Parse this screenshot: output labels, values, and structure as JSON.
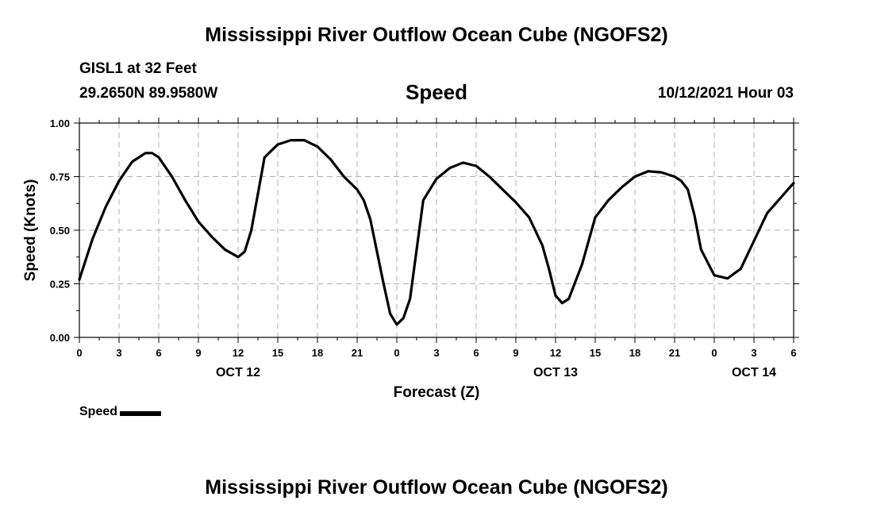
{
  "header": {
    "title": "Mississippi River Outflow Ocean Cube (NGOFS2)",
    "station": "GISL1 at 32 Feet",
    "coordinates": "29.2650N  89.9580W",
    "variable": "Speed",
    "datetime": "10/12/2021 Hour 03"
  },
  "footer": {
    "title": "Mississippi River Outflow Ocean Cube (NGOFS2)"
  },
  "legend": {
    "label": "Speed",
    "color": "#000000"
  },
  "chart_data": {
    "type": "line",
    "title": "Speed",
    "xlabel": "Forecast (Z)",
    "ylabel": "Speed (Knots)",
    "xlim": [
      0,
      54
    ],
    "ylim": [
      0,
      1
    ],
    "grid": true,
    "x_tick_values": [
      0,
      3,
      6,
      9,
      12,
      15,
      18,
      21,
      24,
      27,
      30,
      33,
      36,
      39,
      42,
      45,
      48,
      51,
      54
    ],
    "x_tick_labels": [
      "0",
      "3",
      "6",
      "9",
      "12",
      "15",
      "18",
      "21",
      "0",
      "3",
      "6",
      "9",
      "12",
      "15",
      "18",
      "21",
      "0",
      "3",
      "6"
    ],
    "date_labels": [
      {
        "x": 12,
        "label": "OCT 12"
      },
      {
        "x": 36,
        "label": "OCT 13"
      },
      {
        "x": 51,
        "label": "OCT 14"
      }
    ],
    "y_ticks": [
      0.0,
      0.25,
      0.5,
      0.75,
      1.0
    ],
    "y_tick_labels": [
      "0.00",
      "0.25",
      "0.50",
      "0.75",
      "1.00"
    ],
    "series": [
      {
        "name": "Speed",
        "color": "#000000",
        "x": [
          0,
          1,
          2,
          3,
          4,
          5,
          5.5,
          6,
          7,
          8,
          9,
          10,
          11,
          12,
          12.5,
          13,
          14,
          15,
          16,
          17,
          18,
          19,
          20,
          21,
          21.5,
          22,
          23,
          23.5,
          24,
          24.5,
          25,
          26,
          27,
          28,
          29,
          30,
          31,
          32,
          33,
          34,
          35,
          35.5,
          36,
          36.5,
          37,
          38,
          39,
          40,
          41,
          42,
          43,
          44,
          45,
          45.5,
          46,
          46.5,
          47,
          48,
          49,
          50,
          51,
          52,
          53,
          54
        ],
        "y": [
          0.27,
          0.46,
          0.61,
          0.73,
          0.82,
          0.86,
          0.86,
          0.84,
          0.75,
          0.64,
          0.54,
          0.47,
          0.41,
          0.375,
          0.4,
          0.5,
          0.84,
          0.9,
          0.92,
          0.92,
          0.89,
          0.83,
          0.75,
          0.69,
          0.64,
          0.55,
          0.25,
          0.11,
          0.06,
          0.09,
          0.18,
          0.64,
          0.74,
          0.79,
          0.815,
          0.8,
          0.75,
          0.69,
          0.63,
          0.56,
          0.43,
          0.32,
          0.195,
          0.16,
          0.18,
          0.34,
          0.56,
          0.64,
          0.7,
          0.75,
          0.775,
          0.77,
          0.75,
          0.73,
          0.69,
          0.57,
          0.41,
          0.29,
          0.275,
          0.32,
          0.45,
          0.58,
          0.65,
          0.72
        ]
      }
    ]
  }
}
